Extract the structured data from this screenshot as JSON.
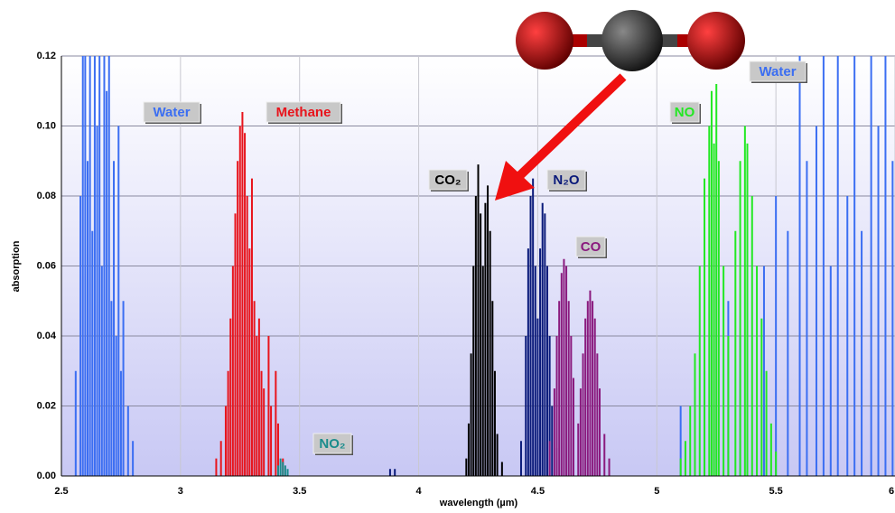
{
  "chart_data": {
    "type": "spectrum",
    "x_label": "wavelength (µm)",
    "y_label": "absorption",
    "xlim": [
      2.5,
      6
    ],
    "xticks": [
      2.5,
      3,
      3.5,
      4,
      4.5,
      5,
      5.5,
      6
    ],
    "ylim": [
      0,
      0.12
    ],
    "yticks": [
      {
        "value": 0,
        "label": "0.00"
      },
      0.02,
      0.04,
      0.06,
      0.08,
      {
        "value": 0.1,
        "label": "0.10"
      },
      0.12
    ],
    "grid": true,
    "series": [
      {
        "name": "Water",
        "color": "#3b6ef2",
        "x": [
          2.56,
          2.58,
          2.59,
          2.6,
          2.61,
          2.62,
          2.63,
          2.64,
          2.65,
          2.66,
          2.67,
          2.68,
          2.69,
          2.7,
          2.71,
          2.72,
          2.73,
          2.74,
          2.75,
          2.76,
          2.78,
          2.8,
          5.1,
          5.2,
          5.3,
          5.35,
          5.45,
          5.5,
          5.55,
          5.6,
          5.63,
          5.67,
          5.7,
          5.73,
          5.76,
          5.8,
          5.83,
          5.86,
          5.9,
          5.93,
          5.96,
          5.99
        ],
        "values": [
          0.03,
          0.08,
          0.12,
          0.12,
          0.09,
          0.12,
          0.07,
          0.12,
          0.1,
          0.12,
          0.06,
          0.12,
          0.11,
          0.12,
          0.05,
          0.09,
          0.04,
          0.1,
          0.03,
          0.05,
          0.02,
          0.01,
          0.02,
          0.03,
          0.05,
          0.04,
          0.06,
          0.08,
          0.07,
          0.12,
          0.09,
          0.1,
          0.12,
          0.06,
          0.12,
          0.08,
          0.12,
          0.07,
          0.12,
          0.1,
          0.12,
          0.09
        ]
      },
      {
        "name": "Methane",
        "color": "#e8141c",
        "x": [
          3.15,
          3.17,
          3.19,
          3.2,
          3.21,
          3.22,
          3.23,
          3.24,
          3.25,
          3.26,
          3.27,
          3.28,
          3.29,
          3.3,
          3.31,
          3.32,
          3.33,
          3.34,
          3.35,
          3.37,
          3.38,
          3.4,
          3.41,
          3.43
        ],
        "values": [
          0.005,
          0.01,
          0.02,
          0.03,
          0.045,
          0.06,
          0.075,
          0.09,
          0.1,
          0.104,
          0.098,
          0.08,
          0.065,
          0.085,
          0.05,
          0.04,
          0.045,
          0.03,
          0.025,
          0.04,
          0.02,
          0.03,
          0.015,
          0.005
        ]
      },
      {
        "name": "NO₂",
        "color": "#1a8c8c",
        "x": [
          3.41,
          3.42,
          3.43,
          3.44,
          3.45
        ],
        "values": [
          0.003,
          0.005,
          0.004,
          0.003,
          0.002
        ]
      },
      {
        "name": "CO₂",
        "color": "#000000",
        "x": [
          4.2,
          4.21,
          4.22,
          4.23,
          4.24,
          4.25,
          4.26,
          4.27,
          4.28,
          4.29,
          4.3,
          4.31,
          4.32,
          4.33,
          4.35
        ],
        "values": [
          0.005,
          0.015,
          0.035,
          0.06,
          0.08,
          0.089,
          0.075,
          0.06,
          0.078,
          0.083,
          0.07,
          0.05,
          0.03,
          0.012,
          0.004
        ]
      },
      {
        "name": "N₂O",
        "color": "#0a1a7a",
        "x": [
          3.88,
          3.9,
          4.43,
          4.45,
          4.46,
          4.47,
          4.48,
          4.49,
          4.5,
          4.51,
          4.52,
          4.53,
          4.54,
          4.55,
          4.56,
          4.58
        ],
        "values": [
          0.002,
          0.002,
          0.01,
          0.04,
          0.065,
          0.08,
          0.085,
          0.06,
          0.045,
          0.065,
          0.078,
          0.075,
          0.06,
          0.04,
          0.02,
          0.008
        ]
      },
      {
        "name": "CO",
        "color": "#8a1a7e",
        "x": [
          4.55,
          4.57,
          4.58,
          4.59,
          4.6,
          4.61,
          4.62,
          4.63,
          4.64,
          4.65,
          4.67,
          4.68,
          4.69,
          4.7,
          4.71,
          4.72,
          4.73,
          4.74,
          4.75,
          4.76,
          4.78,
          4.8
        ],
        "values": [
          0.01,
          0.025,
          0.04,
          0.05,
          0.058,
          0.062,
          0.06,
          0.05,
          0.04,
          0.028,
          0.015,
          0.025,
          0.035,
          0.045,
          0.05,
          0.053,
          0.05,
          0.045,
          0.035,
          0.025,
          0.012,
          0.005
        ]
      },
      {
        "name": "NO",
        "color": "#22e822",
        "x": [
          5.1,
          5.12,
          5.14,
          5.16,
          5.18,
          5.2,
          5.22,
          5.23,
          5.24,
          5.25,
          5.26,
          5.28,
          5.3,
          5.33,
          5.35,
          5.37,
          5.38,
          5.4,
          5.42,
          5.44,
          5.46,
          5.48,
          5.5
        ],
        "values": [
          0.005,
          0.01,
          0.02,
          0.035,
          0.06,
          0.085,
          0.1,
          0.11,
          0.095,
          0.112,
          0.09,
          0.06,
          0.04,
          0.07,
          0.09,
          0.1,
          0.095,
          0.08,
          0.06,
          0.045,
          0.03,
          0.015,
          0.007
        ]
      }
    ]
  }
}
